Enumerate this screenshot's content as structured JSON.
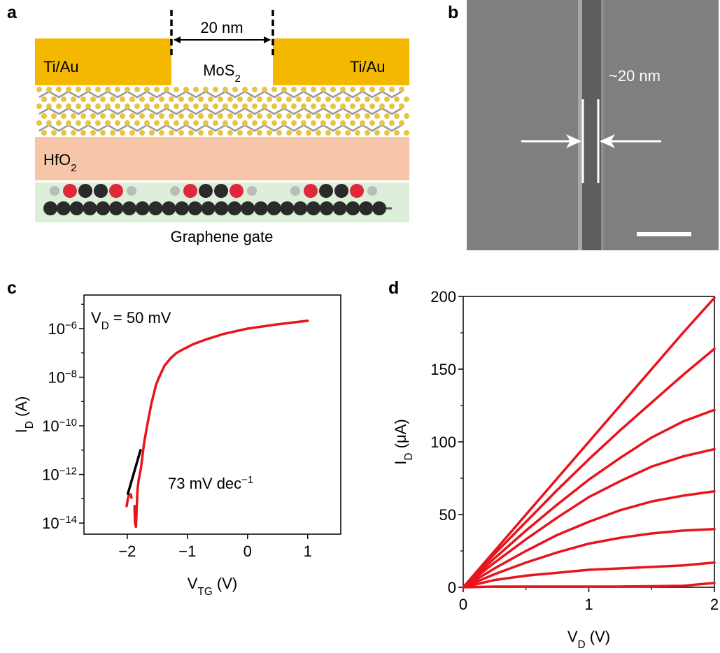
{
  "panel_labels": [
    "a",
    "b",
    "c",
    "d"
  ],
  "panel_a": {
    "left_contact": "Ti/Au",
    "right_contact": "Ti/Au",
    "gap": "20 nm",
    "channel": {
      "text": "MoS",
      "subscript": "2"
    },
    "dielectric": {
      "text": "HfO",
      "subscript": "2"
    },
    "gate": "Graphene gate"
  },
  "panel_b": {
    "annotation": "~20 nm"
  },
  "chart_data": [
    {
      "type": "line",
      "log_y": true,
      "xlim": [
        -2.72,
        1.55
      ],
      "ylim": [
        3.5e-15,
        2.4e-05
      ],
      "xticks": [
        {
          "value": -2,
          "label": "−2"
        },
        {
          "value": -1,
          "label": "−1"
        },
        0,
        1
      ],
      "yticks": [
        {
          "value": 1e-14,
          "label": "10",
          "exponent": "−14"
        },
        {
          "value": 1e-12,
          "label": "10",
          "exponent": "−12"
        },
        {
          "value": 1e-10,
          "label": "10",
          "exponent": "−10"
        },
        {
          "value": 1e-08,
          "label": "10",
          "exponent": "−8"
        },
        {
          "value": 1e-06,
          "label": "10",
          "exponent": "−6"
        }
      ],
      "yticks_minor": [
        1e-13,
        1e-11,
        1e-09,
        1e-07,
        1e-05
      ],
      "xlabel": {
        "text": "V",
        "subscript": "TG",
        "unit": " (V)"
      },
      "ylabel": {
        "text": "I",
        "subscript": "D",
        "unit": " (A)"
      },
      "annotations": [
        {
          "text": "V",
          "subscript": "D",
          "rest": " = 50 mV"
        },
        {
          "text": "73 mV dec",
          "superscript": "−1"
        }
      ],
      "series": [
        {
          "color": "#e8141c",
          "x": [
            -2.01,
            -1.99,
            -1.97,
            -1.94,
            -1.93,
            -1.91,
            -1.88,
            -1.87,
            -1.855,
            -1.845,
            -1.83,
            -1.81,
            -1.77,
            -1.72,
            -1.67,
            -1.6,
            -1.52,
            -1.47,
            -1.38,
            -1.28,
            -1.18,
            -1.05,
            -0.9,
            -0.7,
            -0.4,
            0,
            0.5,
            1
          ],
          "values": [
            5e-14,
            1e-13,
            1.5e-13,
            1.5e-13,
            1.1e-13,
            null,
            5e-14,
            1e-14,
            7e-15,
            3e-14,
            2.4e-13,
            6e-13,
            2e-12,
            2e-11,
            1e-10,
            8e-10,
            5e-09,
            1e-08,
            3e-08,
            6e-08,
            1e-07,
            1.5e-07,
            2.3e-07,
            3.5e-07,
            6e-07,
            1e-06,
            1.5e-06,
            2.1e-06
          ]
        },
        {
          "color": "#000000",
          "x": [
            -1.99,
            -1.78
          ],
          "values": [
            1.6e-13,
            1e-11
          ]
        }
      ]
    },
    {
      "type": "line",
      "xlim": [
        0,
        2
      ],
      "ylim": [
        0,
        200
      ],
      "xticks": [
        0,
        1,
        2
      ],
      "xticks_minor": [
        0.5,
        1.5
      ],
      "yticks": [
        0,
        50,
        100,
        150,
        200
      ],
      "yticks_minor": [
        25,
        75,
        125,
        175
      ],
      "xlabel": {
        "text": "V",
        "subscript": "D",
        "unit": " (V)"
      },
      "ylabel": {
        "text": "I",
        "subscript": "D",
        "unit": " (μA)"
      },
      "x": [
        0,
        0.25,
        0.5,
        0.75,
        1,
        1.25,
        1.5,
        1.75,
        2
      ],
      "series": [
        {
          "color": "#e8141c",
          "values": [
            0,
            25,
            50,
            75,
            100,
            125,
            150,
            175,
            199
          ]
        },
        {
          "color": "#e8141c",
          "values": [
            0,
            23,
            45,
            67,
            88,
            108,
            127,
            146,
            164
          ]
        },
        {
          "color": "#e8141c",
          "values": [
            0,
            20,
            39,
            57,
            74,
            89,
            103,
            114,
            122
          ]
        },
        {
          "color": "#e8141c",
          "values": [
            0,
            17,
            33,
            48,
            62,
            73,
            83,
            90,
            95
          ]
        },
        {
          "color": "#e8141c",
          "values": [
            0,
            13,
            25,
            36,
            45,
            53,
            59,
            63,
            66
          ]
        },
        {
          "color": "#e8141c",
          "values": [
            0,
            9,
            17,
            24,
            30,
            34,
            37,
            39,
            40
          ]
        },
        {
          "color": "#e8141c",
          "values": [
            0,
            5,
            8,
            10,
            12,
            13,
            14,
            15,
            17
          ]
        },
        {
          "color": "#e8141c",
          "values": [
            0,
            0.5,
            0.5,
            0.5,
            0.5,
            0.5,
            0.7,
            1,
            3
          ]
        }
      ]
    }
  ]
}
